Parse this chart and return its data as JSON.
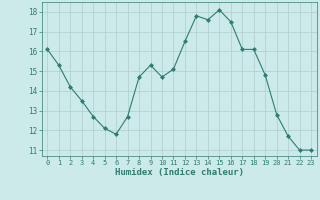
{
  "x": [
    0,
    1,
    2,
    3,
    4,
    5,
    6,
    7,
    8,
    9,
    10,
    11,
    12,
    13,
    14,
    15,
    16,
    17,
    18,
    19,
    20,
    21,
    22,
    23
  ],
  "y": [
    16.1,
    15.3,
    14.2,
    13.5,
    12.7,
    12.1,
    11.8,
    12.7,
    14.7,
    15.3,
    14.7,
    15.1,
    16.5,
    17.8,
    17.6,
    18.1,
    17.5,
    16.1,
    16.1,
    14.8,
    12.8,
    11.7,
    11.0,
    11.0
  ],
  "line_color": "#2e7d6e",
  "marker": "D",
  "marker_size": 2.0,
  "bg_color": "#cceaea",
  "grid_color": "#b0cccc",
  "xlabel": "Humidex (Indice chaleur)",
  "xlim": [
    -0.5,
    23.5
  ],
  "ylim": [
    10.7,
    18.5
  ],
  "yticks": [
    11,
    12,
    13,
    14,
    15,
    16,
    17,
    18
  ],
  "xticks": [
    0,
    1,
    2,
    3,
    4,
    5,
    6,
    7,
    8,
    9,
    10,
    11,
    12,
    13,
    14,
    15,
    16,
    17,
    18,
    19,
    20,
    21,
    22,
    23
  ]
}
